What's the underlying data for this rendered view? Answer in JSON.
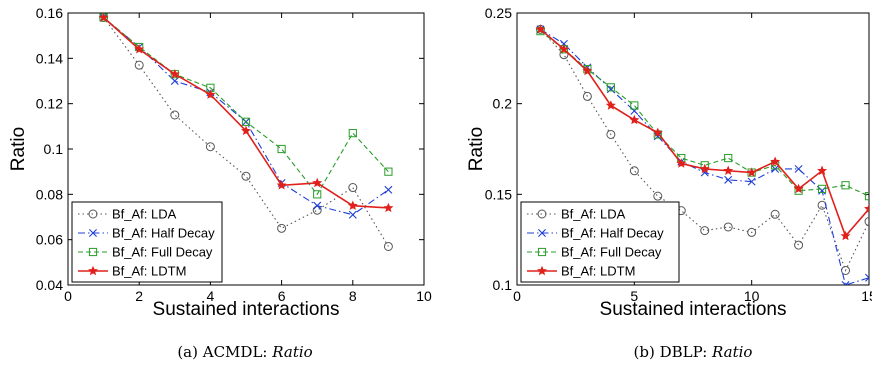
{
  "chart_data": [
    {
      "type": "line",
      "caption_prefix": "(a) ACMDL: ",
      "caption_italic": "Ratio",
      "xlabel": "Sustained interactions",
      "ylabel": "Ratio",
      "xlim": [
        0,
        10
      ],
      "ylim": [
        0.04,
        0.16
      ],
      "xticks": [
        0,
        2,
        4,
        6,
        8,
        10
      ],
      "yticks": [
        0.04,
        0.06,
        0.08,
        0.1,
        0.12,
        0.14,
        0.16
      ],
      "ytick_labels": [
        "0.04",
        "0.06",
        "0.08",
        "0.1",
        "0.12",
        "0.14",
        "0.16"
      ],
      "grid": false,
      "legend_position": "bottom-left",
      "x": [
        1,
        2,
        3,
        4,
        5,
        6,
        7,
        8,
        9
      ],
      "series": [
        {
          "name": "Bf_Af: LDA",
          "color": "#555555",
          "style": "dotted",
          "marker": "circle",
          "values": [
            0.158,
            0.137,
            0.115,
            0.101,
            0.088,
            0.065,
            0.073,
            0.083,
            0.057
          ]
        },
        {
          "name": "Bf_Af: Half Decay",
          "color": "#1f3fd8",
          "style": "dashdot",
          "marker": "x",
          "values": [
            0.158,
            0.145,
            0.13,
            0.125,
            0.112,
            0.085,
            0.075,
            0.071,
            0.082
          ]
        },
        {
          "name": "Bf_Af: Full Decay",
          "color": "#2a9d2a",
          "style": "dashed",
          "marker": "square",
          "values": [
            0.158,
            0.145,
            0.133,
            0.127,
            0.112,
            0.1,
            0.08,
            0.107,
            0.09
          ]
        },
        {
          "name": "Bf_Af: LDTM",
          "color": "#e0201b",
          "style": "solid",
          "marker": "star",
          "values": [
            0.158,
            0.144,
            0.133,
            0.124,
            0.108,
            0.084,
            0.085,
            0.075,
            0.074
          ]
        }
      ]
    },
    {
      "type": "line",
      "caption_prefix": "(b) DBLP: ",
      "caption_italic": "Ratio",
      "xlabel": "Sustained interactions",
      "ylabel": "Ratio",
      "xlim": [
        0,
        15
      ],
      "ylim": [
        0.1,
        0.25
      ],
      "xticks": [
        0,
        5,
        10,
        15
      ],
      "yticks": [
        0.1,
        0.15,
        0.2,
        0.25
      ],
      "ytick_labels": [
        "0.1",
        "0.15",
        "0.2",
        "0.25"
      ],
      "grid": false,
      "legend_position": "bottom-left",
      "x": [
        1,
        2,
        3,
        4,
        5,
        6,
        7,
        8,
        9,
        10,
        11,
        12,
        13,
        14,
        15
      ],
      "series": [
        {
          "name": "Bf_Af: LDA",
          "color": "#555555",
          "style": "dotted",
          "marker": "circle",
          "values": [
            0.241,
            0.227,
            0.204,
            0.183,
            0.163,
            0.149,
            0.141,
            0.13,
            0.132,
            0.129,
            0.139,
            0.122,
            0.144,
            0.108,
            0.135
          ]
        },
        {
          "name": "Bf_Af: Half Decay",
          "color": "#1f3fd8",
          "style": "dashdot",
          "marker": "x",
          "values": [
            0.241,
            0.233,
            0.22,
            0.208,
            0.196,
            0.182,
            0.168,
            0.162,
            0.158,
            0.157,
            0.164,
            0.164,
            0.152,
            0.1,
            0.104
          ]
        },
        {
          "name": "Bf_Af: Full Decay",
          "color": "#2a9d2a",
          "style": "dashed",
          "marker": "square",
          "values": [
            0.24,
            0.23,
            0.219,
            0.209,
            0.199,
            0.183,
            0.17,
            0.166,
            0.17,
            0.162,
            0.166,
            0.152,
            0.153,
            0.155,
            0.149
          ]
        },
        {
          "name": "Bf_Af: LDTM",
          "color": "#e0201b",
          "style": "solid",
          "marker": "star",
          "values": [
            0.241,
            0.23,
            0.218,
            0.199,
            0.191,
            0.184,
            0.167,
            0.164,
            0.163,
            0.162,
            0.168,
            0.153,
            0.163,
            0.127,
            0.142
          ]
        }
      ]
    }
  ]
}
